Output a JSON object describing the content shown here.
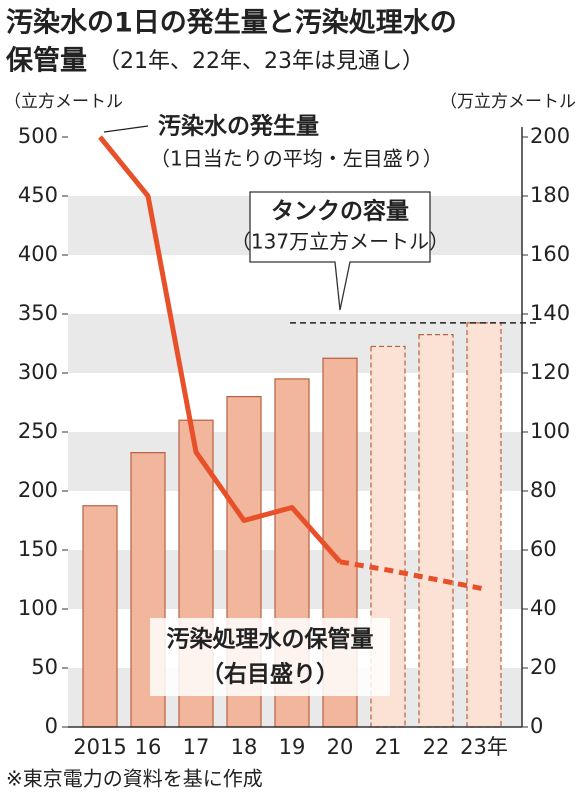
{
  "chart_data": {
    "type": "bar-line",
    "title": [
      "汚染水の1日の発生量と汚染処理水の",
      "保管量"
    ],
    "subtitle": "（21年、22年、23年は見通し）",
    "y_unit": "（立方メートル",
    "y2_unit": "（万立方メートル",
    "categories": [
      "2015",
      "16",
      "17",
      "18",
      "19",
      "20",
      "21",
      "22",
      "23年"
    ],
    "dash_from": "21",
    "series": [
      {
        "name": "汚染処理水の保管量",
        "note": "（右目盛り）",
        "kind": "bar",
        "axis": "y2",
        "color": "#f2b69c",
        "forecast_color": "#fbe2d5",
        "edge": "#b8603f",
        "values": [
          75,
          93,
          104,
          112,
          118,
          125,
          129,
          133,
          137
        ]
      },
      {
        "name": "汚染水の発生量",
        "note": "（1日当たりの平均・左目盛り）",
        "kind": "line",
        "axis": "y",
        "color": "#e8502a",
        "values": [
          500,
          450,
          233,
          175,
          186,
          140,
          133,
          125,
          117
        ]
      }
    ],
    "annotations": [
      {
        "title": "タンクの容量",
        "text": "（137万立方メートル）",
        "value": 137,
        "axis": "y2"
      }
    ],
    "ylim": [
      0,
      500
    ],
    "yticks": [
      0,
      50,
      100,
      150,
      200,
      250,
      300,
      350,
      400,
      450,
      500
    ],
    "y2lim": [
      0,
      200
    ],
    "y2ticks": [
      0,
      20,
      40,
      60,
      80,
      100,
      120,
      140,
      160,
      180,
      200
    ],
    "grid": "bands",
    "grid_color": "#e9e9e9",
    "source": "※東京電力の資料を基に作成"
  }
}
